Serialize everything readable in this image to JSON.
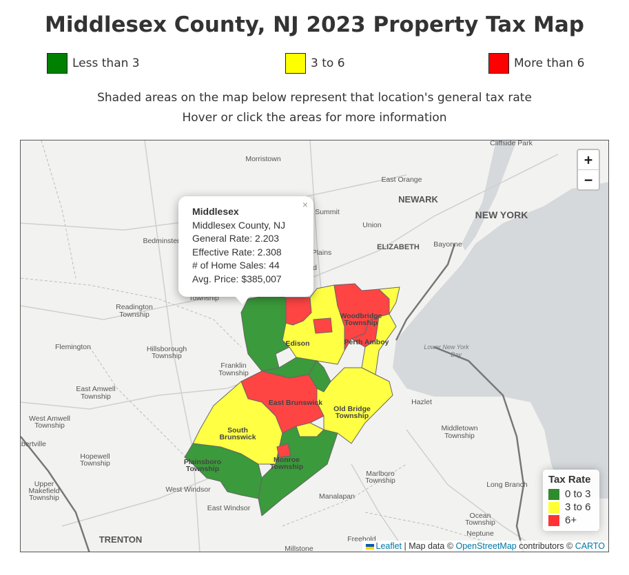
{
  "title": "Middlesex County, NJ 2023 Property Tax Map",
  "legend_top": [
    {
      "label": "Less than 3",
      "color": "#008000"
    },
    {
      "label": "3 to 6",
      "color": "#ffff00"
    },
    {
      "label": "More than 6",
      "color": "#ff0000"
    }
  ],
  "subtitle_1": "Shaded areas on the map below represent that location's general tax rate",
  "subtitle_2": "Hover or click the areas for more information",
  "zoom": {
    "in": "+",
    "out": "−"
  },
  "popup": {
    "name": "Middlesex",
    "county": "Middlesex County, NJ",
    "general_rate": "General Rate: 2.203",
    "effective_rate": "Effective Rate: 2.308",
    "home_sales": "# of Home Sales: 44",
    "avg_price": "Avg. Price: $385,007",
    "close": "×"
  },
  "map_legend": {
    "title": "Tax Rate",
    "items": [
      {
        "label": "0 to 3",
        "color": "#2e8b2e"
      },
      {
        "label": "3 to 6",
        "color": "#ffff33"
      },
      {
        "label": "6+",
        "color": "#ff3333"
      }
    ]
  },
  "attribution": {
    "leaflet": "Leaflet",
    "sep": " | Map data © ",
    "osm": "OpenStreetMap",
    "contrib": " contributors © ",
    "carto": "CARTO"
  },
  "places": {
    "cliffside_park": "Cliffside Park",
    "morristown": "Morristown",
    "east_orange": "East Orange",
    "newark": "NEWARK",
    "new_york": "NEW YORK",
    "summit": "Summit",
    "union": "Union",
    "bedminster": "Bedminster",
    "plains": "Plains",
    "elizabeth": "ELIZABETH",
    "bayonne": "Bayonne",
    "readington": "Readington",
    "township": "Township",
    "woodbridge": "Woodbridge",
    "edison": "Edison",
    "perth_amboy": "Perth Amboy",
    "flemington": "Flemington",
    "hillsborough": "Hillsborough",
    "lower_ny_bay": "Lower New York",
    "bay": "Bay",
    "franklin": "Franklin",
    "east_amwell": "East Amwell",
    "east_brunswick": "East Brunswick",
    "hazlet": "Hazlet",
    "old_bridge": "Old Bridge",
    "west_amwell": "West Amwell",
    "south_brunswick": "South",
    "brunswick": "Brunswick",
    "middletown": "Middletown",
    "bertville": "nbertville",
    "hopewell": "Hopewell",
    "plainsboro": "Plainsboro",
    "monroe": "Monroe",
    "marlboro": "Marlboro",
    "upper": "Upper",
    "makefield": "Makefield",
    "west_windsor": "West Windsor",
    "long_branch": "Long Branch",
    "manalapan": "Manalapan",
    "east_windsor": "East Windsor",
    "ocean": "Ocean",
    "trenton": "TRENTON",
    "neptune": "Neptune",
    "freehold": "Freehold",
    "millstone": "Millstone",
    "d_frag": "d"
  }
}
